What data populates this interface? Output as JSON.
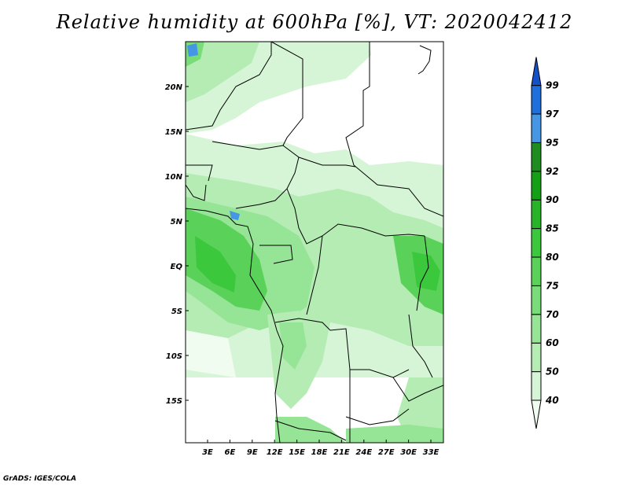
{
  "title": "Relative humidity at 600hPa [%], VT: 2020042412",
  "credit": "GrADS: IGES/COLA",
  "map": {
    "lat_labels": [
      "20N",
      "15N",
      "10N",
      "5N",
      "EQ",
      "5S",
      "10S",
      "15S"
    ],
    "lon_labels": [
      "3E",
      "6E",
      "9E",
      "12E",
      "15E",
      "18E",
      "21E",
      "24E",
      "27E",
      "30E",
      "33E"
    ]
  },
  "colorbar": {
    "levels": [
      "40",
      "50",
      "60",
      "70",
      "75",
      "80",
      "85",
      "90",
      "92",
      "95",
      "97",
      "99"
    ],
    "colors": [
      "#f0fcf0",
      "#d6f5d6",
      "#b4ecb4",
      "#96e496",
      "#78dc78",
      "#5ad25a",
      "#3cc83c",
      "#28b428",
      "#14a014",
      "#1e8c1e",
      "#4696e6",
      "#1e6edc",
      "#1450c8"
    ]
  }
}
